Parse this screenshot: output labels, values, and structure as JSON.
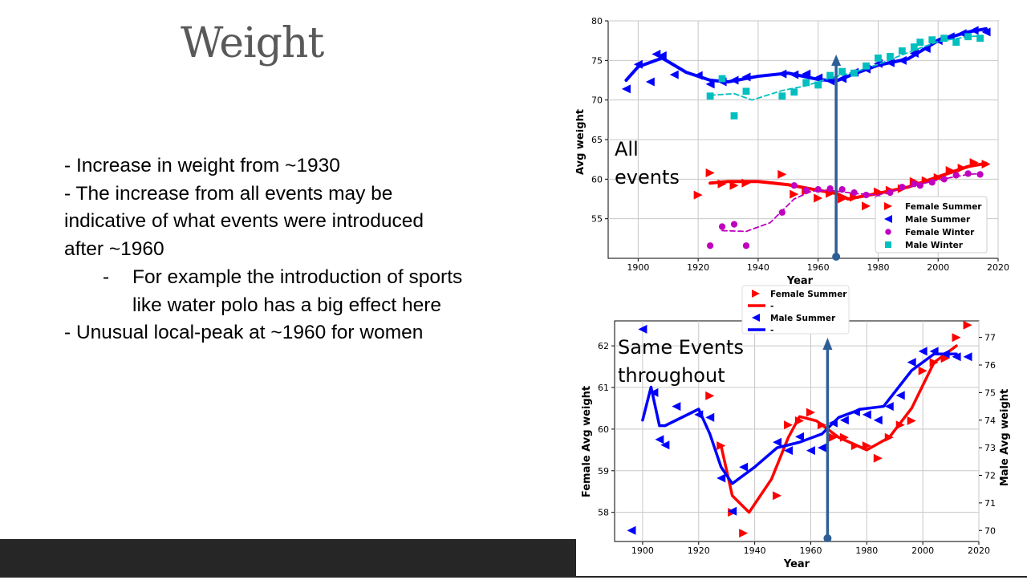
{
  "slide": {
    "title": "Weight",
    "bullets": [
      "- Increase in weight from ~1930",
      "- The increase from all events may be",
      "indicative of what events were introduced",
      "after ~1960",
      "For example the introduction of sports",
      "like water polo has a big effect here",
      "- Unusual local-peak at ~1960 for women"
    ],
    "sub_bullet_dash": "-"
  },
  "chart_data": [
    {
      "type": "scatter",
      "xlabel": "Year",
      "ylabel": "Avg weight",
      "xlim": [
        1890,
        2020
      ],
      "ylim": [
        50,
        80
      ],
      "xticks": [
        1900,
        1920,
        1940,
        1960,
        1980,
        2000,
        2020
      ],
      "yticks": [
        55,
        60,
        65,
        70,
        75,
        80
      ],
      "grid": true,
      "legend_position": "lower-right",
      "annotation": {
        "lines": [
          "All",
          "events"
        ],
        "arrow_x": 1966
      },
      "series": [
        {
          "name": "Female Summer",
          "color": "#ff0000",
          "marker": "triangle-right",
          "points": [
            [
              1920,
              58
            ],
            [
              1924,
              60.8
            ],
            [
              1928,
              59.4
            ],
            [
              1932,
              59.2
            ],
            [
              1936,
              59.5
            ],
            [
              1948,
              60.6
            ],
            [
              1952,
              58.1
            ],
            [
              1956,
              58.5
            ],
            [
              1960,
              57.6
            ],
            [
              1964,
              58.2
            ],
            [
              1968,
              57.5
            ],
            [
              1972,
              57.7
            ],
            [
              1976,
              56.6
            ],
            [
              1980,
              58.4
            ],
            [
              1984,
              58.6
            ],
            [
              1988,
              58.8
            ],
            [
              1992,
              59.7
            ],
            [
              1996,
              59.8
            ],
            [
              2000,
              60.2
            ],
            [
              2004,
              61.1
            ],
            [
              2008,
              61.4
            ],
            [
              2012,
              62.1
            ],
            [
              2016,
              61.9
            ]
          ],
          "trend": [
            [
              1924,
              59.5
            ],
            [
              1930,
              59.7
            ],
            [
              1940,
              59.7
            ],
            [
              1950,
              59.3
            ],
            [
              1960,
              58.6
            ],
            [
              1966,
              58.2
            ],
            [
              1970,
              57.5
            ],
            [
              1980,
              58.2
            ],
            [
              1990,
              59
            ],
            [
              2000,
              60.3
            ],
            [
              2010,
              61.6
            ],
            [
              2016,
              62
            ]
          ]
        },
        {
          "name": "Male Summer",
          "color": "#0000ff",
          "marker": "triangle-left",
          "points": [
            [
              1896,
              71.4
            ],
            [
              1900,
              74.5
            ],
            [
              1904,
              72.3
            ],
            [
              1906,
              75.8
            ],
            [
              1908,
              75.6
            ],
            [
              1912,
              73.2
            ],
            [
              1920,
              73.1
            ],
            [
              1924,
              72
            ],
            [
              1928,
              72.3
            ],
            [
              1932,
              72.5
            ],
            [
              1936,
              72.9
            ],
            [
              1948,
              73.3
            ],
            [
              1952,
              73.2
            ],
            [
              1956,
              73.3
            ],
            [
              1960,
              72.8
            ],
            [
              1964,
              72.4
            ],
            [
              1968,
              72.7
            ],
            [
              1972,
              73.5
            ],
            [
              1976,
              73.9
            ],
            [
              1980,
              74.6
            ],
            [
              1984,
              74.7
            ],
            [
              1988,
              75
            ],
            [
              1992,
              75.9
            ],
            [
              1996,
              76.5
            ],
            [
              2000,
              77.5
            ],
            [
              2004,
              78
            ],
            [
              2008,
              78.4
            ],
            [
              2012,
              78.8
            ],
            [
              2016,
              78.6
            ]
          ],
          "trend": [
            [
              1896,
              72.5
            ],
            [
              1900,
              74.2
            ],
            [
              1908,
              75.3
            ],
            [
              1916,
              73.5
            ],
            [
              1924,
              72.5
            ],
            [
              1930,
              72.3
            ],
            [
              1940,
              73
            ],
            [
              1950,
              73.4
            ],
            [
              1960,
              72.6
            ],
            [
              1966,
              72.4
            ],
            [
              1972,
              73.3
            ],
            [
              1980,
              74.4
            ],
            [
              1990,
              75.2
            ],
            [
              2000,
              77.5
            ],
            [
              2010,
              78.6
            ],
            [
              2016,
              79
            ]
          ]
        },
        {
          "name": "Female Winter",
          "color": "#bf00bf",
          "marker": "circle",
          "points": [
            [
              1924,
              51.6
            ],
            [
              1928,
              54
            ],
            [
              1932,
              54.3
            ],
            [
              1936,
              51.6
            ],
            [
              1948,
              55.8
            ],
            [
              1952,
              59.2
            ],
            [
              1956,
              58.6
            ],
            [
              1960,
              58.7
            ],
            [
              1964,
              58.8
            ],
            [
              1968,
              58.7
            ],
            [
              1972,
              58.3
            ],
            [
              1976,
              58
            ],
            [
              1980,
              57.6
            ],
            [
              1984,
              58.3
            ],
            [
              1988,
              59
            ],
            [
              1992,
              59.4
            ],
            [
              1994,
              59.2
            ],
            [
              1998,
              59.6
            ],
            [
              2002,
              60
            ],
            [
              2006,
              60.5
            ],
            [
              2010,
              60.7
            ],
            [
              2014,
              60.6
            ]
          ],
          "trend": [
            [
              1928,
              53.5
            ],
            [
              1936,
              53.4
            ],
            [
              1944,
              54.5
            ],
            [
              1952,
              57.5
            ],
            [
              1958,
              58.5
            ],
            [
              1964,
              58.6
            ],
            [
              1972,
              58.2
            ],
            [
              1980,
              58
            ],
            [
              1990,
              59
            ],
            [
              2000,
              59.9
            ],
            [
              2010,
              60.6
            ],
            [
              2014,
              60.7
            ]
          ]
        },
        {
          "name": "Male Winter",
          "color": "#00bfbf",
          "marker": "square",
          "points": [
            [
              1924,
              70.5
            ],
            [
              1928,
              72.7
            ],
            [
              1932,
              68
            ],
            [
              1936,
              71.1
            ],
            [
              1948,
              70.5
            ],
            [
              1952,
              71
            ],
            [
              1956,
              72.2
            ],
            [
              1960,
              71.9
            ],
            [
              1964,
              73.1
            ],
            [
              1968,
              73.6
            ],
            [
              1972,
              73.4
            ],
            [
              1976,
              74.3
            ],
            [
              1980,
              75.3
            ],
            [
              1984,
              75.5
            ],
            [
              1988,
              76.2
            ],
            [
              1992,
              76.7
            ],
            [
              1994,
              77.3
            ],
            [
              1998,
              77.6
            ],
            [
              2002,
              77.8
            ],
            [
              2006,
              77.3
            ],
            [
              2010,
              78
            ],
            [
              2014,
              77.8
            ]
          ],
          "trend": [
            [
              1924,
              70.6
            ],
            [
              1932,
              70.8
            ],
            [
              1938,
              70
            ],
            [
              1948,
              71.2
            ],
            [
              1956,
              71.8
            ],
            [
              1964,
              72.8
            ],
            [
              1972,
              73.5
            ],
            [
              1980,
              74.5
            ],
            [
              1990,
              76
            ],
            [
              2000,
              77.4
            ],
            [
              2010,
              78
            ],
            [
              2014,
              78.1
            ]
          ]
        }
      ]
    },
    {
      "type": "scatter",
      "xlabel": "Year",
      "ylabel": "Female Avg weight",
      "ylabel_right": "Male Avg weight",
      "xlim": [
        1890,
        2020
      ],
      "ylim": [
        57.3,
        62.6
      ],
      "ylim_right": [
        69.6,
        77.6
      ],
      "xticks": [
        1900,
        1920,
        1940,
        1960,
        1980,
        2000,
        2020
      ],
      "yticks": [
        58,
        59,
        60,
        61,
        62
      ],
      "yticks_right": [
        70,
        71,
        72,
        73,
        74,
        75,
        76,
        77
      ],
      "grid": true,
      "legend_position": "top",
      "legend_entries": [
        {
          "label": "Female Summer",
          "color": "#ff0000",
          "marker": "triangle-right"
        },
        {
          "label": "-",
          "color": "#ff0000",
          "marker": "line"
        },
        {
          "label": "Male Summer",
          "color": "#0000ff",
          "marker": "triangle-left"
        },
        {
          "label": "-",
          "color": "#0000ff",
          "marker": "line"
        }
      ],
      "annotation": {
        "lines": [
          "Same Events",
          "throughout"
        ],
        "arrow_x": 1966
      },
      "series": [
        {
          "name": "Female Summer",
          "axis": "left",
          "color": "#ff0000",
          "marker": "triangle-right",
          "points": [
            [
              1924,
              60.8
            ],
            [
              1928,
              59.6
            ],
            [
              1932,
              58
            ],
            [
              1936,
              57.5
            ],
            [
              1948,
              58.4
            ],
            [
              1952,
              60.1
            ],
            [
              1956,
              60.2
            ],
            [
              1960,
              60.4
            ],
            [
              1964,
              60.1
            ],
            [
              1968,
              59.8
            ],
            [
              1972,
              59.8
            ],
            [
              1976,
              59.6
            ],
            [
              1980,
              59.6
            ],
            [
              1984,
              59.3
            ],
            [
              1988,
              59.8
            ],
            [
              1992,
              60.1
            ],
            [
              1996,
              60.2
            ],
            [
              2000,
              61.4
            ],
            [
              2004,
              61.6
            ],
            [
              2008,
              61.7
            ],
            [
              2012,
              62.2
            ],
            [
              2016,
              62.5
            ]
          ],
          "trend": [
            [
              1928,
              59.6
            ],
            [
              1932,
              58.4
            ],
            [
              1938,
              58
            ],
            [
              1946,
              58.8
            ],
            [
              1952,
              59.8
            ],
            [
              1956,
              60.3
            ],
            [
              1962,
              60.2
            ],
            [
              1970,
              59.8
            ],
            [
              1980,
              59.5
            ],
            [
              1988,
              59.8
            ],
            [
              1996,
              60.5
            ],
            [
              2004,
              61.6
            ],
            [
              2012,
              62
            ]
          ]
        },
        {
          "name": "Male Summer",
          "axis": "right",
          "color": "#0000ff",
          "marker": "triangle-left",
          "points": [
            [
              1896,
              70
            ],
            [
              1900,
              77.3
            ],
            [
              1904,
              75
            ],
            [
              1906,
              73.3
            ],
            [
              1908,
              73.1
            ],
            [
              1912,
              74.5
            ],
            [
              1920,
              74.2
            ],
            [
              1924,
              74.1
            ],
            [
              1928,
              71.9
            ],
            [
              1932,
              70.7
            ],
            [
              1936,
              72.3
            ],
            [
              1948,
              73.2
            ],
            [
              1952,
              72.9
            ],
            [
              1956,
              73.4
            ],
            [
              1960,
              72.9
            ],
            [
              1964,
              73
            ],
            [
              1968,
              73.9
            ],
            [
              1972,
              74
            ],
            [
              1976,
              74.3
            ],
            [
              1980,
              74.2
            ],
            [
              1984,
              74
            ],
            [
              1988,
              74.5
            ],
            [
              1992,
              74.9
            ],
            [
              1996,
              76.1
            ],
            [
              2000,
              76.5
            ],
            [
              2004,
              76.5
            ],
            [
              2008,
              76.4
            ],
            [
              2012,
              76.3
            ],
            [
              2016,
              76.3
            ]
          ],
          "trend": [
            [
              1900,
              74
            ],
            [
              1903,
              75.2
            ],
            [
              1906,
              73.8
            ],
            [
              1908,
              73.8
            ],
            [
              1920,
              74.4
            ],
            [
              1924,
              73.5
            ],
            [
              1928,
              72.3
            ],
            [
              1932,
              71.7
            ],
            [
              1940,
              72.3
            ],
            [
              1948,
              73
            ],
            [
              1956,
              73.2
            ],
            [
              1964,
              73.5
            ],
            [
              1970,
              74.1
            ],
            [
              1978,
              74.4
            ],
            [
              1986,
              74.5
            ],
            [
              1996,
              75.8
            ],
            [
              2004,
              76.4
            ],
            [
              2012,
              76.4
            ]
          ]
        }
      ]
    }
  ]
}
